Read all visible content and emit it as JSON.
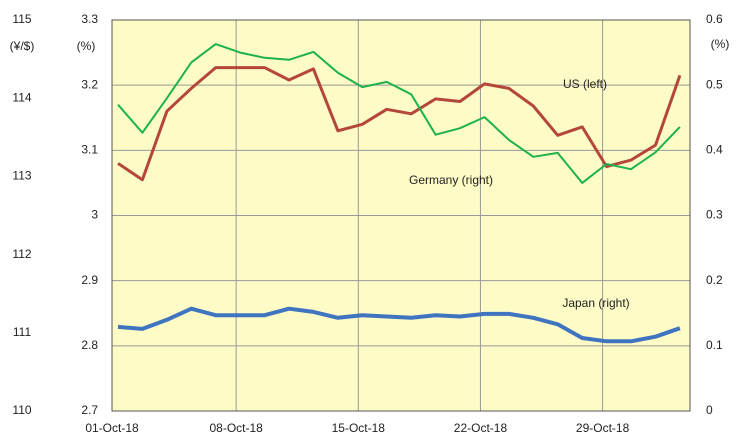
{
  "chart_data": {
    "type": "line",
    "categories": [
      "01-Oct-18",
      null,
      null,
      null,
      null,
      "08-Oct-18",
      null,
      null,
      null,
      null,
      "15-Oct-18",
      null,
      null,
      null,
      null,
      "22-Oct-18",
      null,
      null,
      null,
      null,
      "29-Oct-18",
      null,
      null,
      null
    ],
    "series": [
      {
        "name": "US (left)",
        "color": "#b5473a",
        "axis": "y",
        "values": [
          3.08,
          3.055,
          3.16,
          3.195,
          3.227,
          3.227,
          3.227,
          3.208,
          3.225,
          3.13,
          3.14,
          3.163,
          3.156,
          3.179,
          3.175,
          3.202,
          3.195,
          3.168,
          3.123,
          3.136,
          3.075,
          3.085,
          3.108,
          3.215
        ]
      },
      {
        "name": "Germany (right)",
        "color": "#1db34a",
        "axis": "y2",
        "values": [
          0.47,
          0.427,
          0.48,
          0.535,
          0.563,
          0.55,
          0.542,
          0.539,
          0.551,
          0.519,
          0.497,
          0.505,
          0.486,
          0.424,
          0.434,
          0.451,
          0.416,
          0.39,
          0.396,
          0.35,
          0.379,
          0.371,
          0.397,
          0.436
        ]
      },
      {
        "name": "Japan (right)",
        "color": "#3f74c0",
        "axis": "y2",
        "values": [
          0.129,
          0.126,
          0.14,
          0.157,
          0.147,
          0.147,
          0.147,
          0.157,
          0.152,
          0.143,
          0.147,
          0.145,
          0.143,
          0.147,
          0.145,
          0.149,
          0.149,
          0.143,
          0.133,
          0.112,
          0.107,
          0.107,
          0.114,
          0.127
        ]
      }
    ],
    "ylabel": "(%)",
    "ylim": [
      2.7,
      3.3
    ],
    "yticks": [
      2.7,
      2.8,
      2.9,
      3.0,
      3.1,
      3.2,
      3.3
    ],
    "y2label": "(%)",
    "y2lim": [
      0,
      0.6
    ],
    "y2ticks": [
      0,
      0.1,
      0.2,
      0.3,
      0.4,
      0.5,
      0.6
    ],
    "y3label": "(¥/$)",
    "y3lim": [
      110,
      115
    ],
    "y3ticks": [
      110,
      111,
      112,
      113,
      114,
      115
    ],
    "grid": true,
    "plot_background": "#fdfbc6"
  }
}
